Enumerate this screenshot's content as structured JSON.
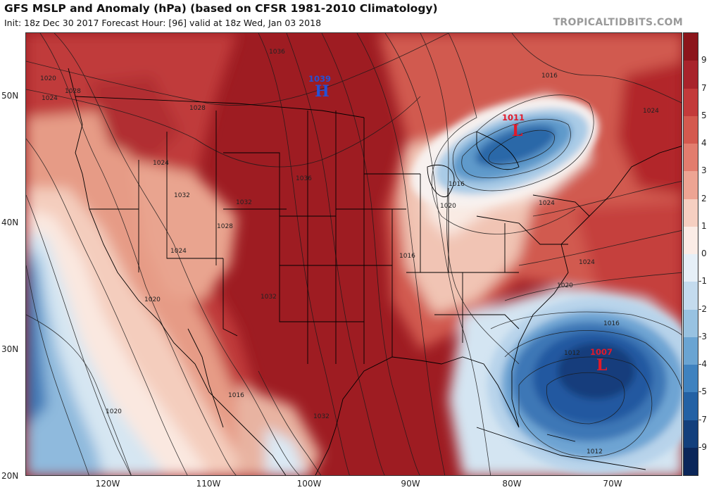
{
  "header": {
    "title": "GFS MSLP and Anomaly (hPa) (based on CFSR 1981-2010 Climatology)",
    "subtitle": "Init: 18z Dec 30 2017   Forecast Hour: [96]   valid at 18z Wed, Jan 03 2018",
    "credit": "TROPICALTIDBITS.COM"
  },
  "axes": {
    "lat_labels": [
      "50N",
      "40N",
      "30N",
      "20N"
    ],
    "lon_labels": [
      "120W",
      "110W",
      "100W",
      "90W",
      "80W",
      "70W"
    ]
  },
  "colorbar": {
    "labels": [
      "9",
      "7",
      "5",
      "4",
      "3",
      "2",
      "1",
      "0",
      "-1",
      "-2",
      "-3",
      "-4",
      "-5",
      "-7",
      "-9"
    ],
    "colors": [
      "#8c151b",
      "#a8232b",
      "#c33a3a",
      "#d4594e",
      "#e27d6e",
      "#eda493",
      "#f6cfc1",
      "#fbece6",
      "#e6eff7",
      "#c4dbee",
      "#98c2e1",
      "#6aa4d2",
      "#3f82bf",
      "#2361a4",
      "#133f7c",
      "#0b2659"
    ]
  },
  "systems": [
    {
      "type": "H",
      "value": "1039",
      "color": "#2451d6"
    },
    {
      "type": "L",
      "value": "1011",
      "color": "#e01a2a"
    },
    {
      "type": "L",
      "value": "1007",
      "color": "#e01a2a"
    }
  ],
  "isobar_labels": [
    "1036",
    "1028",
    "1024",
    "1028",
    "1032",
    "1032",
    "1028",
    "1024",
    "1036",
    "1032",
    "1020",
    "1016",
    "1020",
    "1032",
    "1016",
    "1016",
    "1024",
    "1020",
    "1024",
    "1024",
    "1020",
    "1016",
    "1012",
    "1012",
    "1016",
    "1020",
    "1024"
  ]
}
